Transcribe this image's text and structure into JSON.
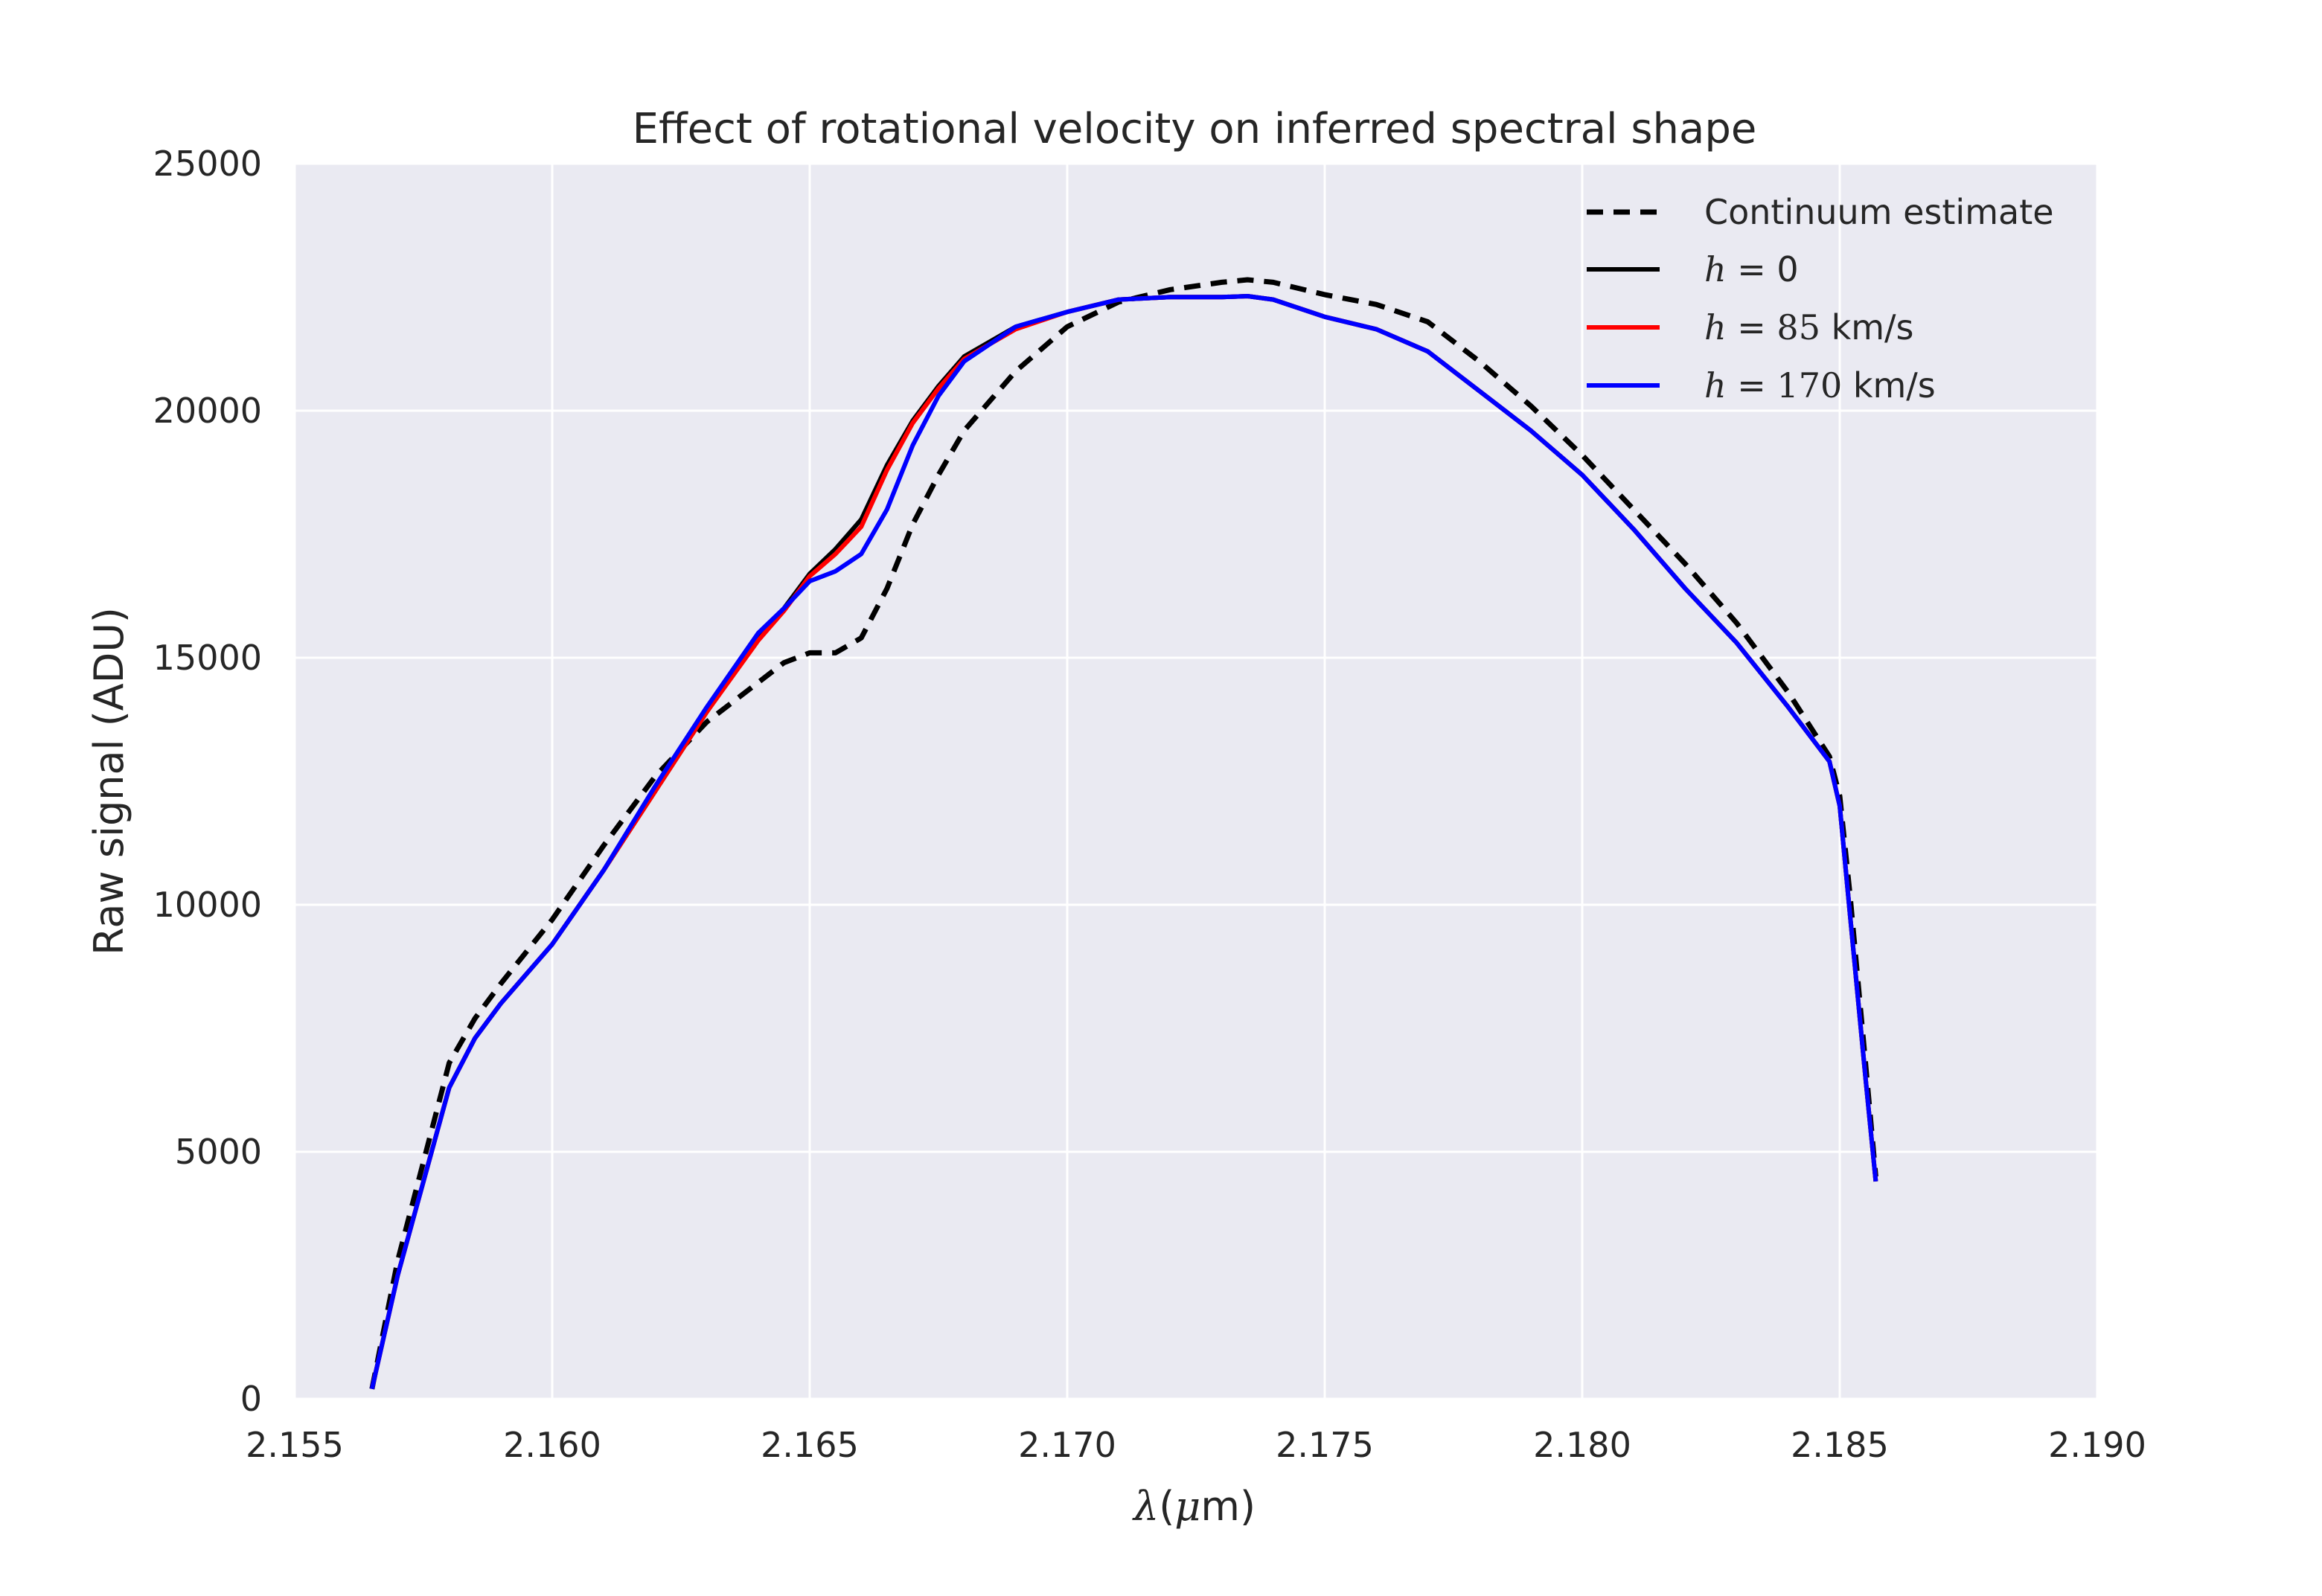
{
  "chart_data": {
    "type": "line",
    "title": "Effect of rotational velocity on inferred spectral shape",
    "xlabel_symbol": "λ",
    "xlabel_paren_open": "(",
    "xlabel_unit_symbol": "μ",
    "xlabel_unit_text": "m)",
    "ylabel": "Raw signal (ADU)",
    "xlim": [
      2.155,
      2.19
    ],
    "ylim": [
      0,
      25000
    ],
    "xticks": [
      "2.155",
      "2.160",
      "2.165",
      "2.170",
      "2.175",
      "2.180",
      "2.185",
      "2.190"
    ],
    "yticks": [
      "0",
      "5000",
      "10000",
      "15000",
      "20000",
      "25000"
    ],
    "grid": true,
    "legend_position": "top-right",
    "legend": [
      {
        "pre": "",
        "math": "",
        "num": "",
        "post": "Continuum estimate"
      },
      {
        "pre": "",
        "math": "h",
        "num": "",
        "post": " = 0"
      },
      {
        "pre": "",
        "math": "h",
        "num": " 85",
        "post": " km/s"
      },
      {
        "pre": "",
        "math": "h",
        "num": " 170",
        "post": " km/s"
      }
    ],
    "series": [
      {
        "color": "#000000",
        "style": "dashed",
        "x": [
          2.1565,
          2.157,
          2.1575,
          2.158,
          2.1585,
          2.159,
          2.16,
          2.161,
          2.162,
          2.163,
          2.164,
          2.1645,
          2.165,
          2.1655,
          2.166,
          2.1665,
          2.167,
          2.1675,
          2.168,
          2.169,
          2.17,
          2.171,
          2.172,
          2.173,
          2.1735,
          2.174,
          2.175,
          2.176,
          2.177,
          2.178,
          2.179,
          2.18,
          2.181,
          2.182,
          2.183,
          2.184,
          2.1848,
          2.185,
          2.1852,
          2.1855,
          2.1857
        ],
        "y": [
          200,
          2800,
          4800,
          6800,
          7700,
          8400,
          9700,
          11200,
          12600,
          13700,
          14500,
          14900,
          15100,
          15100,
          15400,
          16400,
          17700,
          18700,
          19600,
          20800,
          21700,
          22200,
          22450,
          22600,
          22650,
          22600,
          22350,
          22150,
          21800,
          21000,
          20100,
          19100,
          18000,
          16900,
          15700,
          14300,
          13000,
          12200,
          10200,
          6800,
          4500
        ]
      },
      {
        "color": "#000000",
        "style": "solid",
        "x": [
          2.1565,
          2.157,
          2.1575,
          2.158,
          2.1585,
          2.159,
          2.16,
          2.161,
          2.162,
          2.163,
          2.164,
          2.1645,
          2.165,
          2.1655,
          2.166,
          2.1665,
          2.167,
          2.1675,
          2.168,
          2.169,
          2.17,
          2.171,
          2.172,
          2.173,
          2.1735,
          2.174,
          2.175,
          2.176,
          2.177,
          2.178,
          2.179,
          2.18,
          2.181,
          2.182,
          2.183,
          2.184,
          2.1848,
          2.185,
          2.1852,
          2.1855,
          2.1857
        ],
        "y": [
          200,
          2500,
          4400,
          6300,
          7300,
          8000,
          9200,
          10700,
          12300,
          13900,
          15400,
          16000,
          16700,
          17200,
          17800,
          18900,
          19800,
          20500,
          21100,
          21700,
          22000,
          22250,
          22300,
          22300,
          22320,
          22250,
          21900,
          21650,
          21200,
          20400,
          19600,
          18700,
          17600,
          16400,
          15300,
          14000,
          12900,
          12000,
          9800,
          6500,
          4400
        ]
      },
      {
        "color": "#ff0000",
        "style": "solid",
        "x": [
          2.1565,
          2.157,
          2.1575,
          2.158,
          2.1585,
          2.159,
          2.16,
          2.161,
          2.162,
          2.163,
          2.164,
          2.1645,
          2.165,
          2.1655,
          2.166,
          2.1665,
          2.167,
          2.1675,
          2.168,
          2.169,
          2.17,
          2.171,
          2.172,
          2.173,
          2.1735,
          2.174,
          2.175,
          2.176,
          2.177,
          2.178,
          2.179,
          2.18,
          2.181,
          2.182,
          2.183,
          2.184,
          2.1848,
          2.185,
          2.1852,
          2.1855,
          2.1857
        ],
        "y": [
          200,
          2500,
          4400,
          6300,
          7300,
          8000,
          9200,
          10700,
          12300,
          13900,
          15350,
          15950,
          16650,
          17100,
          17650,
          18800,
          19750,
          20450,
          21050,
          21650,
          22000,
          22250,
          22300,
          22300,
          22320,
          22250,
          21900,
          21650,
          21200,
          20400,
          19600,
          18700,
          17600,
          16400,
          15300,
          14000,
          12900,
          12000,
          9800,
          6500,
          4400
        ]
      },
      {
        "color": "#0000ff",
        "style": "solid",
        "x": [
          2.1565,
          2.157,
          2.1575,
          2.158,
          2.1585,
          2.159,
          2.16,
          2.161,
          2.162,
          2.163,
          2.164,
          2.1645,
          2.165,
          2.1655,
          2.166,
          2.1665,
          2.167,
          2.1675,
          2.168,
          2.169,
          2.17,
          2.171,
          2.172,
          2.173,
          2.1735,
          2.174,
          2.175,
          2.176,
          2.177,
          2.178,
          2.179,
          2.18,
          2.181,
          2.182,
          2.183,
          2.184,
          2.1848,
          2.185,
          2.1852,
          2.1855,
          2.1857
        ],
        "y": [
          200,
          2500,
          4400,
          6300,
          7300,
          8000,
          9200,
          10700,
          12400,
          14000,
          15500,
          16000,
          16550,
          16750,
          17100,
          18000,
          19300,
          20300,
          21000,
          21700,
          22000,
          22250,
          22300,
          22300,
          22320,
          22250,
          21900,
          21650,
          21200,
          20400,
          19600,
          18700,
          17600,
          16400,
          15300,
          14000,
          12900,
          12000,
          9800,
          6500,
          4400
        ]
      }
    ]
  },
  "style": {
    "plot_bg": "#eaeaf2",
    "grid": "#ffffff",
    "text": "#262626"
  }
}
